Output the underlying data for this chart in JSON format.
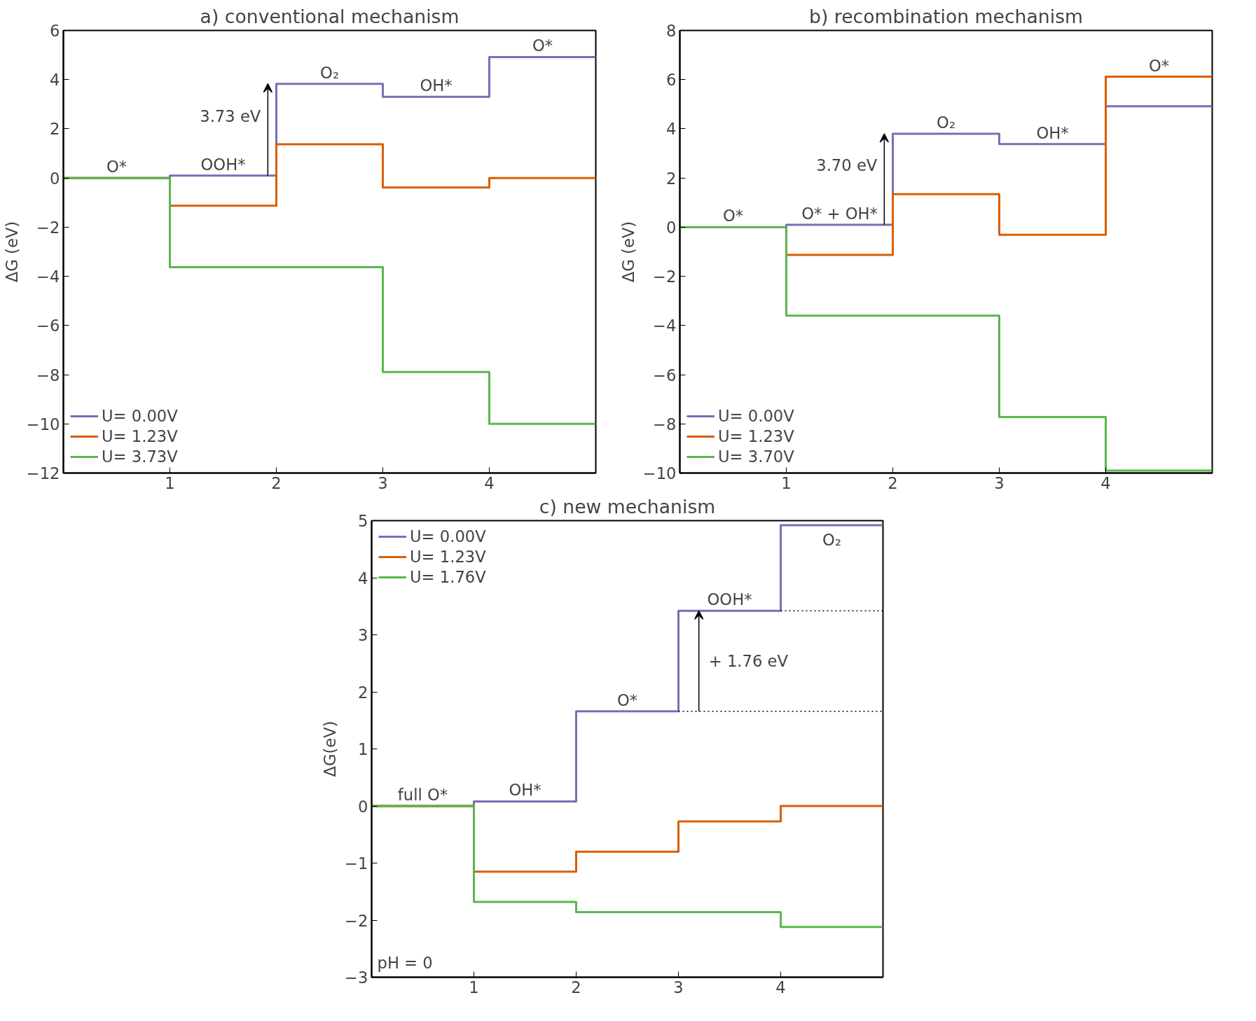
{
  "chart_data": [
    {
      "type": "step",
      "title": "a) conventional mechanism",
      "ylabel": "ΔG (eV)",
      "x": [
        0,
        1,
        2,
        3,
        4,
        5
      ],
      "xlim": [
        0,
        5
      ],
      "xticks": [
        1,
        2,
        3,
        4
      ],
      "ylim": [
        -12,
        6
      ],
      "yticks": [
        -12,
        -10,
        -8,
        -6,
        -4,
        -2,
        0,
        2,
        4,
        6
      ],
      "legend": "bottom left",
      "grid": false,
      "marker": "none",
      "line_style": "solid",
      "series": [
        {
          "name": "U= 0.00V",
          "color": "#7570b3",
          "values": [
            0,
            0.1,
            3.83,
            3.3,
            4.92,
            4.92
          ]
        },
        {
          "name": "U= 1.23V",
          "color": "#d95f02",
          "values": [
            0,
            -1.13,
            1.37,
            -0.39,
            0,
            0
          ]
        },
        {
          "name": "U= 3.73V",
          "color": "#5bb64f",
          "values": [
            0,
            -3.63,
            -3.63,
            -7.89,
            -10.0,
            -10.0
          ]
        }
      ],
      "annotations": [
        {
          "text": "O*",
          "x": 0.5,
          "y": 0
        },
        {
          "text": "OOH*",
          "x": 1.5,
          "y": 0.1
        },
        {
          "text": "O₂",
          "x": 2.5,
          "y": 3.83
        },
        {
          "text": "OH*",
          "x": 3.5,
          "y": 3.3
        },
        {
          "text": "O*",
          "x": 4.5,
          "y": 4.92
        },
        {
          "text": "3.73 eV",
          "x": 2,
          "y": 3.83
        }
      ]
    },
    {
      "type": "step",
      "title": "b) recombination mechanism",
      "ylabel": "ΔG (eV)",
      "x": [
        0,
        1,
        2,
        3,
        4,
        5
      ],
      "xlim": [
        0,
        5
      ],
      "xticks": [
        1,
        2,
        3,
        4
      ],
      "ylim": [
        -10,
        8
      ],
      "yticks": [
        -10,
        -8,
        -6,
        -4,
        -2,
        0,
        2,
        4,
        6,
        8
      ],
      "legend": "bottom left",
      "grid": false,
      "marker": "none",
      "line_style": "solid",
      "series": [
        {
          "name": "U= 0.00V",
          "color": "#7570b3",
          "values": [
            0,
            0.1,
            3.8,
            3.38,
            4.92,
            4.92
          ]
        },
        {
          "name": "U= 1.23V",
          "color": "#d95f02",
          "values": [
            0,
            -1.13,
            1.34,
            -0.31,
            6.12,
            6.12
          ]
        },
        {
          "name": "U= 3.70V",
          "color": "#5bb64f",
          "values": [
            0,
            -3.6,
            -3.6,
            -7.72,
            -9.9,
            -9.9
          ]
        }
      ],
      "annotations": [
        {
          "text": "O*",
          "x": 0.5,
          "y": 0
        },
        {
          "text": "O* + OH*",
          "x": 1.5,
          "y": 0.1
        },
        {
          "text": "O₂",
          "x": 2.5,
          "y": 3.8
        },
        {
          "text": "OH*",
          "x": 3.5,
          "y": 3.38
        },
        {
          "text": "O*",
          "x": 4.5,
          "y": 6.12
        },
        {
          "text": "3.70 eV",
          "x": 2,
          "y": 3.8
        }
      ]
    },
    {
      "type": "step",
      "title": "c) new mechanism",
      "ylabel": "ΔG(eV)",
      "x": [
        0,
        1,
        2,
        3,
        4,
        5
      ],
      "xlim": [
        0,
        5
      ],
      "xticks": [
        1,
        2,
        3,
        4
      ],
      "ylim": [
        -3,
        5
      ],
      "yticks": [
        -3,
        -2,
        -1,
        0,
        1,
        2,
        3,
        4,
        5
      ],
      "legend": "top left",
      "grid": false,
      "marker": "none",
      "line_style": "solid",
      "series": [
        {
          "name": "U= 0.00V",
          "color": "#7570b3",
          "values": [
            0,
            0.08,
            1.66,
            3.42,
            4.92,
            4.92
          ]
        },
        {
          "name": "U= 1.23V",
          "color": "#d95f02",
          "values": [
            0,
            -1.15,
            -0.8,
            -0.27,
            0,
            0
          ]
        },
        {
          "name": "U= 1.76V",
          "color": "#5bb64f",
          "values": [
            0,
            -1.68,
            -1.86,
            -1.86,
            -2.12,
            -2.12
          ]
        }
      ],
      "ref_lines": [
        {
          "axis": "y",
          "value": 1.66,
          "color": "#000000",
          "line_style": "dotted"
        },
        {
          "axis": "y",
          "value": 3.42,
          "color": "#000000",
          "line_style": "dotted"
        }
      ],
      "annotations": [
        {
          "text": "full O*",
          "x": 0.5,
          "y": 0
        },
        {
          "text": "OH*",
          "x": 1.5,
          "y": 0.08
        },
        {
          "text": "O*",
          "x": 2.5,
          "y": 1.66
        },
        {
          "text": "OOH*",
          "x": 3.5,
          "y": 3.42
        },
        {
          "text": "O₂",
          "x": 4.5,
          "y": 4.92
        },
        {
          "text": "+ 1.76 eV",
          "x": 3.2,
          "y": 3.42
        },
        "pH = 0"
      ]
    }
  ]
}
